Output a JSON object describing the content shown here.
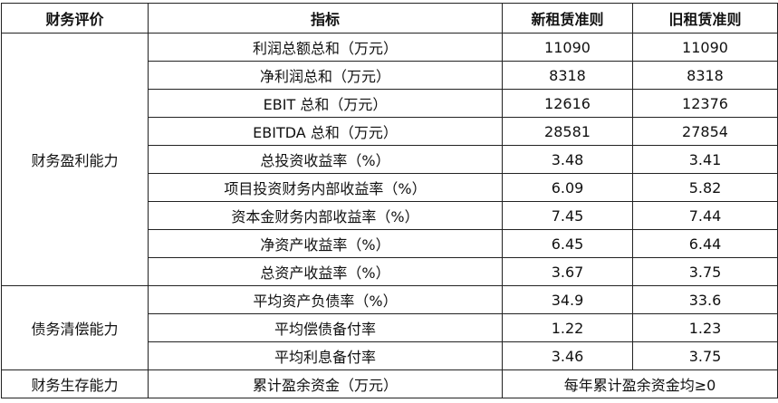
{
  "headers": [
    "财务评价",
    "指标",
    "新租赁准则",
    "旧租赁准则"
  ],
  "groups": [
    {
      "category": "财务盈利能力",
      "rows": [
        {
          "indicator": "利润总额总和（万元）",
          "new": "11090",
          "old": "11090"
        },
        {
          "indicator": "净利润总和（万元）",
          "new": "8318",
          "old": "8318"
        },
        {
          "indicator": "EBIT 总和（万元）",
          "new": "12616",
          "old": "12376"
        },
        {
          "indicator": "EBITDA 总和（万元）",
          "new": "28581",
          "old": "27854"
        },
        {
          "indicator": "总投资收益率（%）",
          "new": "3.48",
          "old": "3.41"
        },
        {
          "indicator": "项目投资财务内部收益率（%）",
          "new": "6.09",
          "old": "5.82"
        },
        {
          "indicator": "资本金财务内部收益率（%）",
          "new": "7.45",
          "old": "7.44"
        },
        {
          "indicator": "净资产收益率（%）",
          "new": "6.45",
          "old": "6.44"
        },
        {
          "indicator": "总资产收益率（%）",
          "new": "3.67",
          "old": "3.75"
        }
      ]
    },
    {
      "category": "债务清偿能力",
      "rows": [
        {
          "indicator": "平均资产负债率（%）",
          "new": "34.9",
          "old": "33.6"
        },
        {
          "indicator": "平均偿债备付率",
          "new": "1.22",
          "old": "1.23"
        },
        {
          "indicator": "平均利息备付率",
          "new": "3.46",
          "old": "3.75"
        }
      ]
    },
    {
      "category": "财务生存能力",
      "rows": [
        {
          "indicator": "累计盈余资金（万元）",
          "merged": "每年累计盈余资金均≥0"
        }
      ]
    }
  ]
}
